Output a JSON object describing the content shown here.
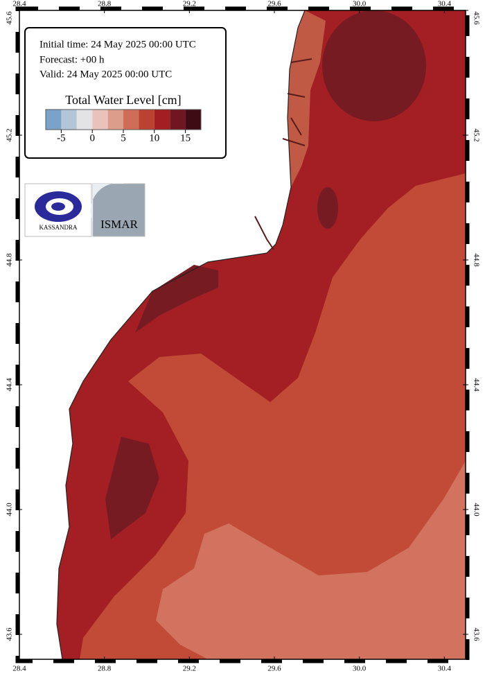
{
  "map": {
    "xlim": [
      28.4,
      30.5
    ],
    "ylim": [
      43.52,
      45.6
    ],
    "lon_ticks": [
      28.4,
      28.8,
      29.2,
      29.6,
      {
        "value": 30,
        "label": "30.0"
      },
      30.4
    ],
    "lat_ticks": [
      43.6,
      {
        "value": 44,
        "label": "44.0"
      },
      44.4,
      44.8,
      45.2,
      45.6
    ]
  },
  "info": {
    "initial_time": "Initial time: 24 May 2025 00:00 UTC",
    "forecast": "Forecast: +00 h",
    "valid": "Valid: 24 May 2025 00:00 UTC"
  },
  "colorbar": {
    "title": "Total Water Level [cm]",
    "bounds": [
      -7.5,
      -5,
      -2.5,
      0,
      2.5,
      5,
      7.5,
      10,
      12.5,
      15,
      17.5
    ],
    "colors": [
      "#7ba3c9",
      "#b3c6d8",
      "#e3e3e6",
      "#e9c3bb",
      "#dd9d8b",
      "#d06d58",
      "#ba4230",
      "#a41d22",
      "#701621",
      "#3e0a13"
    ],
    "ticks": [
      -5,
      0,
      5,
      10,
      15
    ]
  },
  "logos": {
    "kassandra": "KASSANDRA",
    "ismar": "ISMAR"
  }
}
